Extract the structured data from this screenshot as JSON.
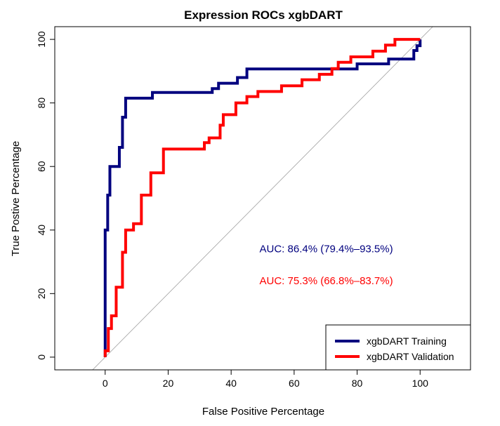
{
  "chart_data": {
    "type": "line",
    "title": "Expression ROCs xgbDART",
    "xlabel": "False Positive Percentage",
    "ylabel": "True Postive Percentage",
    "xlim": [
      -16,
      116
    ],
    "ylim": [
      -4,
      104
    ],
    "xticks": [
      0,
      20,
      40,
      60,
      80,
      100
    ],
    "yticks": [
      0,
      20,
      40,
      60,
      80,
      100
    ],
    "grid": false,
    "legend_position": "bottom-right",
    "diagonal_reference": {
      "color": "#a0a0a0"
    },
    "series": [
      {
        "name": "xgbDART Training",
        "color": "#00007f",
        "points": [
          [
            0,
            0
          ],
          [
            0,
            40
          ],
          [
            0.8,
            40
          ],
          [
            0.8,
            51
          ],
          [
            1.5,
            51
          ],
          [
            1.5,
            60
          ],
          [
            4.5,
            60
          ],
          [
            4.5,
            66
          ],
          [
            5.5,
            66
          ],
          [
            5.5,
            75.5
          ],
          [
            6.5,
            75.5
          ],
          [
            6.5,
            81.5
          ],
          [
            15,
            81.5
          ],
          [
            15,
            83.3
          ],
          [
            34,
            83.3
          ],
          [
            34,
            84.5
          ],
          [
            36,
            84.5
          ],
          [
            36,
            86.2
          ],
          [
            42,
            86.2
          ],
          [
            42,
            88
          ],
          [
            45,
            88
          ],
          [
            45,
            90.7
          ],
          [
            70,
            90.7
          ],
          [
            80,
            90.7
          ],
          [
            80,
            92.3
          ],
          [
            90,
            92.3
          ],
          [
            90,
            93.8
          ],
          [
            98,
            93.8
          ],
          [
            98,
            96.5
          ],
          [
            99,
            96.5
          ],
          [
            99,
            98
          ],
          [
            100,
            98
          ],
          [
            100,
            100
          ]
        ]
      },
      {
        "name": "xgbDART Validation",
        "color": "#ff0000",
        "points": [
          [
            0,
            0
          ],
          [
            0,
            2
          ],
          [
            1,
            2
          ],
          [
            1,
            9
          ],
          [
            2,
            9
          ],
          [
            2,
            13
          ],
          [
            3.5,
            13
          ],
          [
            3.5,
            22
          ],
          [
            5.5,
            22
          ],
          [
            5.5,
            33
          ],
          [
            6.5,
            33
          ],
          [
            6.5,
            40
          ],
          [
            9,
            40
          ],
          [
            9,
            42
          ],
          [
            11.5,
            42
          ],
          [
            11.5,
            51
          ],
          [
            14.5,
            51
          ],
          [
            14.5,
            58
          ],
          [
            18.5,
            58
          ],
          [
            18.5,
            65.5
          ],
          [
            31.5,
            65.5
          ],
          [
            31.5,
            67.5
          ],
          [
            33,
            67.5
          ],
          [
            33,
            69
          ],
          [
            36.5,
            69
          ],
          [
            36.5,
            73
          ],
          [
            37.5,
            73
          ],
          [
            37.5,
            76.3
          ],
          [
            41.5,
            76.3
          ],
          [
            41.5,
            80
          ],
          [
            45,
            80
          ],
          [
            45,
            82
          ],
          [
            48.5,
            82
          ],
          [
            48.5,
            83.6
          ],
          [
            56,
            83.6
          ],
          [
            56,
            85.4
          ],
          [
            62.5,
            85.4
          ],
          [
            62.5,
            87.3
          ],
          [
            68,
            87.3
          ],
          [
            68,
            89
          ],
          [
            72,
            89
          ],
          [
            72,
            90.8
          ],
          [
            74,
            90.8
          ],
          [
            74,
            92.8
          ],
          [
            78,
            92.8
          ],
          [
            78,
            94.5
          ],
          [
            85,
            94.5
          ],
          [
            85,
            96.3
          ],
          [
            89,
            96.3
          ],
          [
            89,
            98.2
          ],
          [
            92,
            98.2
          ],
          [
            92,
            100
          ],
          [
            100,
            100
          ]
        ]
      }
    ],
    "annotations": [
      {
        "text": "AUC: 86.4% (79.4%–93.5%)",
        "x": 49,
        "y": 33,
        "color": "#00007f"
      },
      {
        "text": "AUC: 75.3% (66.8%–83.7%)",
        "x": 49,
        "y": 23,
        "color": "#ff0000"
      }
    ]
  }
}
